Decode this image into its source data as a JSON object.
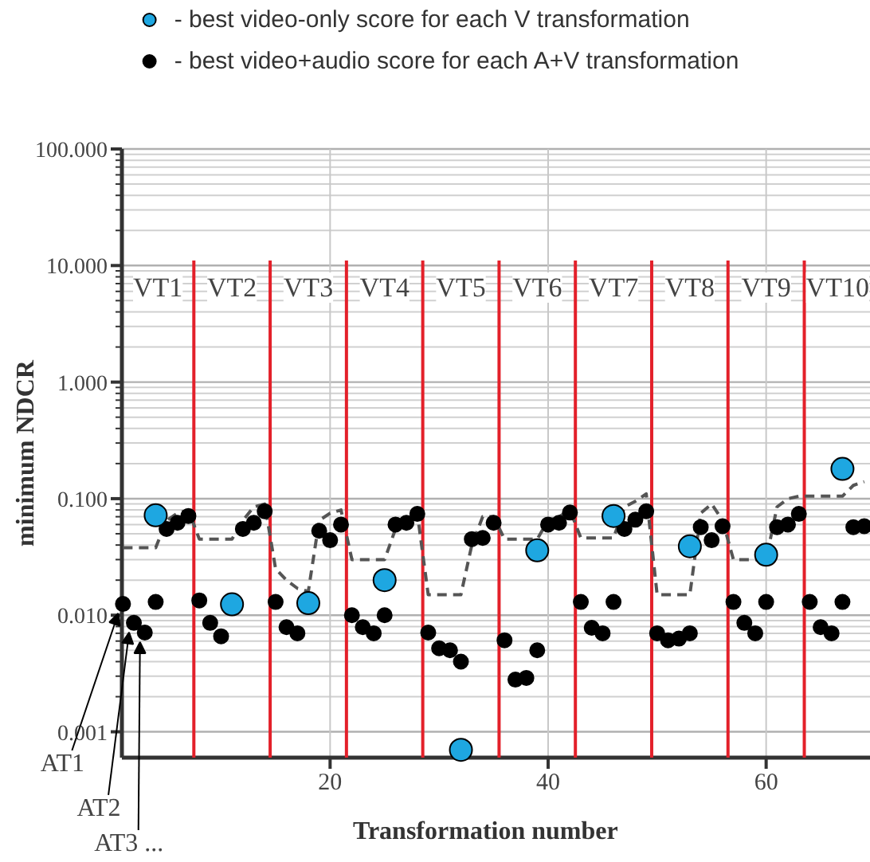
{
  "chart_data": {
    "type": "scatter",
    "xlabel": "Transformation number",
    "ylabel": "minimum NDCR",
    "log": true,
    "grid": true,
    "legend": "top",
    "xlim": [
      0.9,
      69.6
    ],
    "xticks": [
      20,
      40,
      60
    ],
    "ylim": [
      0.0006,
      100
    ],
    "yticks": [
      {
        "value": 0.001,
        "label": "0.001"
      },
      {
        "value": 0.01,
        "label": "0.010"
      },
      {
        "value": 0.1,
        "label": "0.100"
      },
      {
        "value": 1,
        "label": "1.000"
      },
      {
        "value": 10,
        "label": "10.000"
      },
      {
        "value": 100,
        "label": "100.000"
      }
    ],
    "series": [
      {
        "type": "line",
        "color": "#555555",
        "line_style": "dashed",
        "marker": "none",
        "x": [
          1,
          2,
          3,
          4,
          5,
          6,
          7,
          8,
          9,
          10,
          11,
          12,
          13,
          14,
          15,
          16,
          17,
          18,
          19,
          20,
          21,
          22,
          23,
          24,
          25,
          26,
          27,
          28,
          29,
          30,
          31,
          32,
          33,
          34,
          35,
          36,
          37,
          38,
          39,
          40,
          41,
          42,
          43,
          44,
          45,
          46,
          47,
          48,
          49,
          50,
          51,
          52,
          53,
          54,
          55,
          56,
          57,
          58,
          59,
          60,
          61,
          62,
          63,
          64,
          65,
          66,
          67,
          68,
          69
        ],
        "values": [
          0.038,
          0.038,
          0.038,
          0.038,
          0.065,
          0.075,
          0.08,
          0.045,
          0.045,
          0.045,
          0.045,
          0.065,
          0.085,
          0.09,
          0.025,
          0.02,
          0.017,
          0.016,
          0.065,
          0.075,
          0.08,
          0.03,
          0.03,
          0.03,
          0.03,
          0.055,
          0.065,
          0.075,
          0.015,
          0.015,
          0.015,
          0.015,
          0.04,
          0.07,
          0.07,
          0.045,
          0.045,
          0.045,
          0.045,
          0.065,
          0.07,
          0.08,
          0.046,
          0.046,
          0.046,
          0.046,
          0.085,
          0.095,
          0.11,
          0.015,
          0.015,
          0.015,
          0.015,
          0.075,
          0.09,
          0.065,
          0.03,
          0.03,
          0.03,
          0.03,
          0.085,
          0.1,
          0.105,
          0.105,
          0.105,
          0.105,
          0.105,
          0.13,
          0.14
        ]
      },
      {
        "name": "- best video+audio score for each A+V transformation",
        "color": "#000000",
        "marker": "circle",
        "x": [
          1,
          2,
          3,
          4,
          5,
          6,
          7,
          8,
          9,
          10,
          11,
          12,
          13,
          14,
          15,
          16,
          17,
          18,
          19,
          20,
          21,
          22,
          23,
          24,
          25,
          26,
          27,
          28,
          29,
          30,
          31,
          32,
          33,
          34,
          35,
          36,
          37,
          38,
          39,
          40,
          41,
          42,
          43,
          44,
          45,
          46,
          47,
          48,
          49,
          50,
          51,
          52,
          53,
          54,
          55,
          56,
          57,
          58,
          59,
          60,
          61,
          62,
          63,
          64,
          65,
          66,
          67,
          68,
          69
        ],
        "values": [
          0.0125,
          0.0086,
          0.0071,
          0.013,
          0.055,
          0.062,
          0.071,
          0.0134,
          0.0086,
          0.0066,
          null,
          0.055,
          0.062,
          0.078,
          0.013,
          0.0079,
          0.007,
          null,
          0.053,
          0.044,
          0.06,
          0.01,
          0.0079,
          0.007,
          0.01,
          0.06,
          0.062,
          0.074,
          0.0071,
          0.0052,
          0.005,
          0.004,
          0.045,
          0.046,
          0.062,
          0.0061,
          0.0028,
          0.0029,
          0.005,
          0.06,
          0.062,
          0.076,
          0.013,
          0.0078,
          0.007,
          0.013,
          0.055,
          0.066,
          0.078,
          0.007,
          0.0061,
          0.0063,
          0.007,
          0.057,
          0.044,
          0.058,
          0.013,
          0.0086,
          0.007,
          0.013,
          0.057,
          0.06,
          0.074,
          0.013,
          0.0079,
          0.007,
          0.013,
          0.057,
          0.058
        ]
      },
      {
        "name": "- best video-only score for each V transformation",
        "color": "#1ea7e1",
        "marker": "circle",
        "x": [
          4,
          11,
          18,
          25,
          32,
          39,
          46,
          53,
          60,
          67
        ],
        "values": [
          0.072,
          0.0124,
          0.0127,
          0.02,
          0.0007,
          0.036,
          0.071,
          0.039,
          0.033,
          0.18
        ]
      }
    ],
    "ref_lines": [
      {
        "axis": "x",
        "value": 7.5,
        "color": "#e3202a"
      },
      {
        "axis": "x",
        "value": 14.5,
        "color": "#e3202a"
      },
      {
        "axis": "x",
        "value": 21.5,
        "color": "#e3202a"
      },
      {
        "axis": "x",
        "value": 28.5,
        "color": "#e3202a"
      },
      {
        "axis": "x",
        "value": 35.5,
        "color": "#e3202a"
      },
      {
        "axis": "x",
        "value": 42.5,
        "color": "#e3202a"
      },
      {
        "axis": "x",
        "value": 49.5,
        "color": "#e3202a"
      },
      {
        "axis": "x",
        "value": 56.5,
        "color": "#e3202a"
      },
      {
        "axis": "x",
        "value": 63.5,
        "color": "#e3202a"
      }
    ],
    "annotations": [
      "VT1",
      "VT2",
      "VT3",
      "VT4",
      "VT5",
      "VT6",
      "VT7",
      "VT8",
      "VT9",
      "VT10",
      {
        "text": "AT1",
        "x": 1,
        "y": 0.0125
      },
      {
        "text": "AT2",
        "x": 2,
        "y": 0.0086
      },
      {
        "text": "AT3 ...",
        "x": 3,
        "y": 0.0071
      }
    ]
  }
}
